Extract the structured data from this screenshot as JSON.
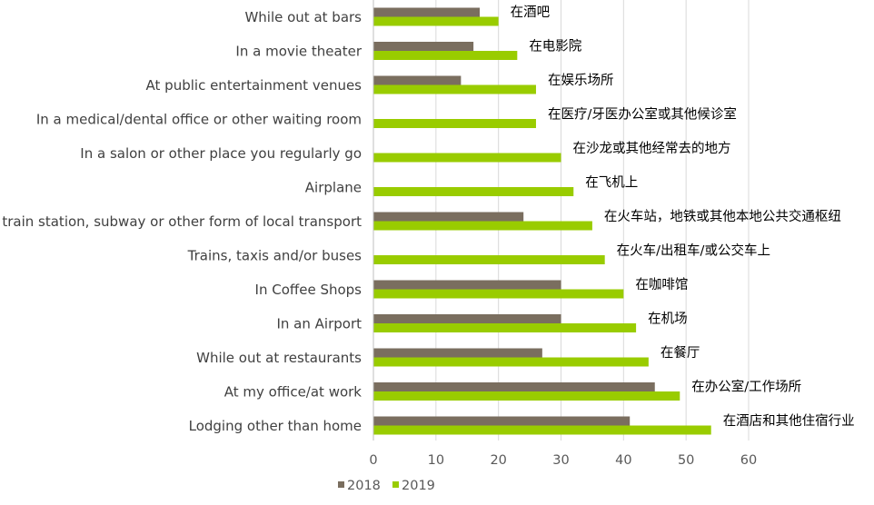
{
  "chart_data": {
    "type": "bar",
    "orientation": "horizontal",
    "categories": [
      "While out at bars",
      "In a movie theater",
      "At public entertainment venues",
      "In a medical/dental office or other waiting room",
      "In a salon or other place you regularly go",
      "Airplane",
      "In a train station, subway or other form of local transport",
      "Trains, taxis and/or buses",
      "In Coffee Shops",
      "In an Airport",
      "While out at restaurants",
      "At my office/at work",
      "Lodging other than home"
    ],
    "category_labels_cn": [
      "在酒吧",
      "在电影院",
      "在娱乐场所",
      "在医疗/牙医办公室或其他候诊室",
      "在沙龙或其他经常去的地方",
      "在飞机上",
      "在火车站，地铁或其他本地公共交通枢纽",
      "在火车/出租车/或公交车上",
      "在咖啡馆",
      "在机场",
      "在餐厅",
      "在办公室/工作场所",
      "在酒店和其他住宿行业"
    ],
    "series": [
      {
        "name": "2018",
        "color": "#7a6e5f",
        "values": [
          17,
          16,
          14,
          null,
          null,
          null,
          24,
          null,
          30,
          30,
          27,
          45,
          41
        ]
      },
      {
        "name": "2019",
        "color": "#99cc00",
        "values": [
          20,
          23,
          26,
          26,
          30,
          32,
          35,
          37,
          40,
          42,
          44,
          49,
          54
        ]
      }
    ],
    "xlim": [
      0,
      60
    ],
    "xticks": [
      0,
      10,
      20,
      30,
      40,
      50,
      60
    ],
    "grid": true,
    "legend_position": "bottom-left"
  }
}
